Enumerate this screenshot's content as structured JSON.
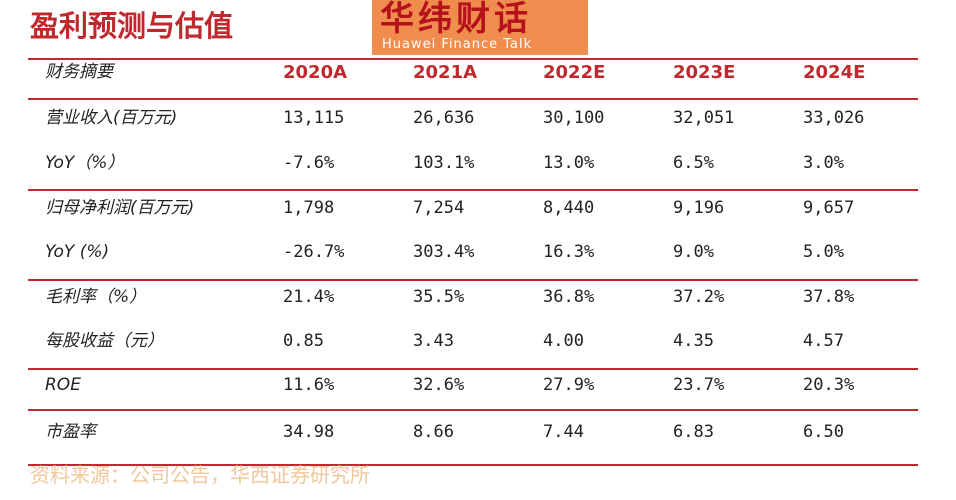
{
  "title": "盈利预测与估值",
  "logo": {
    "name": "华纬财话",
    "subtitle": "Huawei Finance Talk"
  },
  "table": {
    "header": [
      "财务摘要",
      "2020A",
      "2021A",
      "2022E",
      "2023E",
      "2024E"
    ],
    "rows": [
      [
        "营业收入(百万元)",
        "13,115",
        "26,636",
        "30,100",
        "32,051",
        "33,026"
      ],
      [
        "YoY（%）",
        "-7.6%",
        "103.1%",
        "13.0%",
        "6.5%",
        "3.0%"
      ],
      [
        "归母净利润(百万元)",
        "1,798",
        "7,254",
        "8,440",
        "9,196",
        "9,657"
      ],
      [
        "YoY (%)",
        "-26.7%",
        "303.4%",
        "16.3%",
        "9.0%",
        "5.0%"
      ],
      [
        "毛利率（%）",
        "21.4%",
        "35.5%",
        "36.8%",
        "37.2%",
        "37.8%"
      ],
      [
        "每股收益（元）",
        "0.85",
        "3.43",
        "4.00",
        "4.35",
        "4.57"
      ],
      [
        "ROE",
        "11.6%",
        "32.6%",
        "27.9%",
        "23.7%",
        "20.3%"
      ],
      [
        "市盈率",
        "34.98",
        "8.66",
        "7.44",
        "6.83",
        "6.50"
      ]
    ]
  },
  "source": "资料来源：公司公告，华西证券研究所"
}
